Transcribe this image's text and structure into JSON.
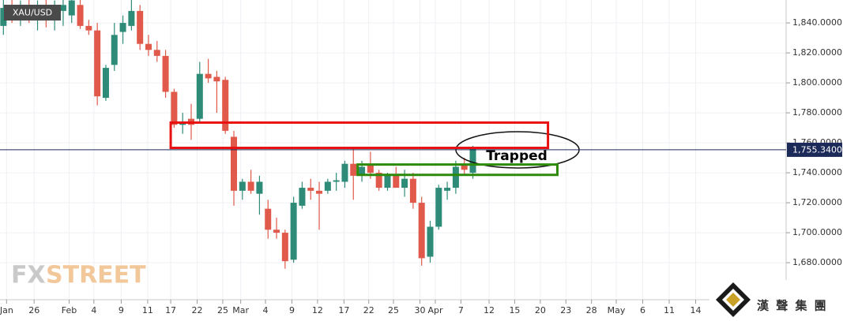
{
  "chart_data": {
    "type": "candlestick",
    "symbol": "XAU/USD",
    "up_color": "#2e8b78",
    "down_color": "#e0594a",
    "x": [
      0,
      1,
      2,
      3,
      4,
      5,
      6,
      7,
      8,
      9,
      10,
      11,
      12,
      13,
      14,
      15,
      16,
      17,
      18,
      19,
      20,
      21,
      22,
      23,
      24,
      25,
      26,
      27,
      28,
      29,
      30,
      31,
      32,
      33,
      34,
      35,
      36,
      37,
      38,
      39,
      40,
      41,
      42,
      43,
      44,
      45,
      46,
      47,
      48,
      49,
      50,
      51,
      52,
      53,
      54,
      55
    ],
    "open": [
      1838,
      1852,
      1845,
      1848,
      1842,
      1850,
      1843,
      1848,
      1845,
      1852,
      1838,
      1835,
      1790,
      1812,
      1834,
      1838,
      1848,
      1826,
      1822,
      1818,
      1794,
      1772,
      1776,
      1776,
      1806,
      1804,
      1802,
      1764,
      1728,
      1734,
      1726,
      1716,
      1702,
      1700,
      1682,
      1718,
      1730,
      1728,
      1728,
      1734,
      1734,
      1746,
      1738,
      1746,
      1740,
      1730,
      1738,
      1730,
      1736,
      1720,
      1684,
      1704,
      1728,
      1730,
      1746,
      1740
    ],
    "high": [
      1856,
      1858,
      1855,
      1856,
      1855,
      1858,
      1855,
      1856,
      1858,
      1856,
      1842,
      1840,
      1812,
      1840,
      1845,
      1858,
      1852,
      1832,
      1828,
      1822,
      1796,
      1780,
      1786,
      1814,
      1816,
      1808,
      1804,
      1768,
      1736,
      1742,
      1738,
      1722,
      1710,
      1702,
      1724,
      1734,
      1736,
      1734,
      1736,
      1740,
      1748,
      1756,
      1748,
      1754,
      1742,
      1740,
      1744,
      1742,
      1740,
      1724,
      1708,
      1732,
      1734,
      1748,
      1750,
      1758
    ],
    "low": [
      1832,
      1840,
      1838,
      1840,
      1835,
      1837,
      1835,
      1838,
      1840,
      1836,
      1832,
      1785,
      1788,
      1808,
      1826,
      1835,
      1822,
      1818,
      1814,
      1790,
      1770,
      1766,
      1762,
      1774,
      1800,
      1780,
      1766,
      1718,
      1722,
      1726,
      1712,
      1696,
      1696,
      1676,
      1680,
      1716,
      1722,
      1702,
      1726,
      1728,
      1730,
      1722,
      1734,
      1736,
      1728,
      1728,
      1730,
      1724,
      1716,
      1678,
      1680,
      1702,
      1722,
      1726,
      1738,
      1736
    ],
    "close": [
      1850,
      1845,
      1848,
      1842,
      1850,
      1843,
      1848,
      1852,
      1855,
      1838,
      1835,
      1791,
      1810,
      1832,
      1840,
      1848,
      1826,
      1822,
      1818,
      1794,
      1772,
      1774,
      1772,
      1806,
      1803,
      1801,
      1768,
      1728,
      1734,
      1728,
      1734,
      1702,
      1700,
      1681,
      1720,
      1730,
      1728,
      1726,
      1734,
      1735,
      1746,
      1738,
      1744,
      1740,
      1730,
      1738,
      1730,
      1736,
      1720,
      1683,
      1704,
      1730,
      1730,
      1744,
      1742,
      1756
    ],
    "xlim": [
      -0.4,
      91.7
    ],
    "xticks": [
      {
        "value": 0.37,
        "label": "Jan"
      },
      {
        "value": 3.6,
        "label": "26"
      },
      {
        "value": 7.7,
        "label": "Feb"
      },
      {
        "value": 10.6,
        "label": "4"
      },
      {
        "value": 13.8,
        "label": "9"
      },
      {
        "value": 16.9,
        "label": "11"
      },
      {
        "value": 19.6,
        "label": "17"
      },
      {
        "value": 22.7,
        "label": "22"
      },
      {
        "value": 25.7,
        "label": "25"
      },
      {
        "value": 27.8,
        "label": "Mar"
      },
      {
        "value": 30.7,
        "label": "4"
      },
      {
        "value": 33.8,
        "label": "9"
      },
      {
        "value": 36.8,
        "label": "12"
      },
      {
        "value": 39.9,
        "label": "17"
      },
      {
        "value": 42.8,
        "label": "22"
      },
      {
        "value": 45.7,
        "label": "25"
      },
      {
        "value": 48.8,
        "label": "30"
      },
      {
        "value": 50.6,
        "label": "Apr"
      },
      {
        "value": 53.6,
        "label": "7"
      },
      {
        "value": 56.9,
        "label": "12"
      },
      {
        "value": 59.9,
        "label": "15"
      },
      {
        "value": 62.9,
        "label": "20"
      },
      {
        "value": 65.9,
        "label": "23"
      },
      {
        "value": 68.9,
        "label": "28"
      },
      {
        "value": 71.8,
        "label": "May"
      },
      {
        "value": 74.9,
        "label": "6"
      },
      {
        "value": 78,
        "label": "11"
      },
      {
        "value": 81.1,
        "label": "14"
      }
    ],
    "ylim": [
      1655.3,
      1855.3
    ],
    "yticks": [
      {
        "value": 1680,
        "label": "1,680.0000"
      },
      {
        "value": 1700,
        "label": "1,700.0000"
      },
      {
        "value": 1720,
        "label": "1,720.0000"
      },
      {
        "value": 1740,
        "label": "1,740.0000"
      },
      {
        "value": 1760,
        "label": "1,760.0000"
      },
      {
        "value": 1780,
        "label": "1,780.0000"
      },
      {
        "value": 1800,
        "label": "1,800.0000"
      },
      {
        "value": 1820,
        "label": "1,820.0000"
      },
      {
        "value": 1840,
        "label": "1,840.0000"
      }
    ],
    "grid": true,
    "last_price": {
      "value": 1755.34,
      "label": "1,755.3400",
      "color": "#1c2a5a"
    },
    "zones": [
      {
        "x": [
          19.6,
          63.8
        ],
        "y": [
          1756.6,
          1773.5
        ],
        "color": "#e81010"
      },
      {
        "x": [
          41.5,
          64.9
        ],
        "y": [
          1738.6,
          1745.5
        ],
        "color": "#2d8a0a"
      }
    ],
    "annotation": "Trapped",
    "watermark": {
      "left": "FX",
      "right": "STREET"
    },
    "logo_text": "漢 聲 集 團"
  }
}
